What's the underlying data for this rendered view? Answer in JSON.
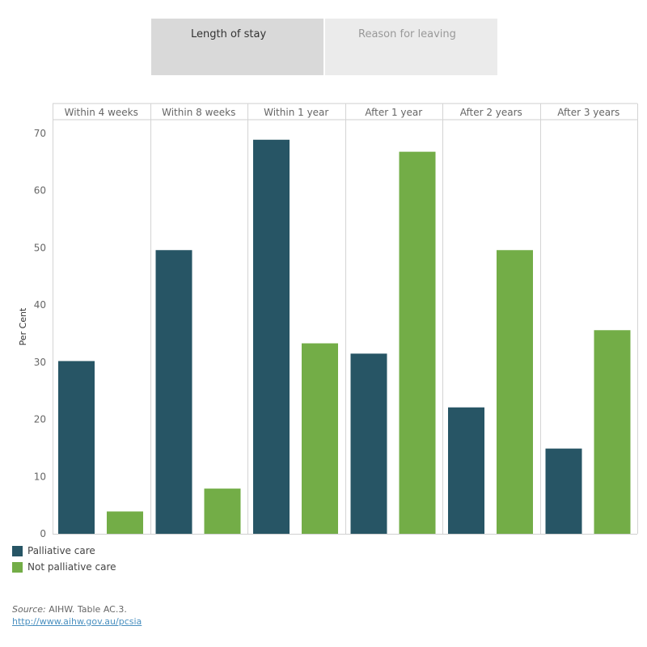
{
  "tabs": {
    "active": "Length of stay",
    "inactive": "Reason for leaving"
  },
  "colors": {
    "palliative": "#275565",
    "not_palliative": "#73ad47"
  },
  "chart_data": {
    "type": "bar",
    "categories": [
      "Within 4 weeks",
      "Within 8 weeks",
      "Within 1 year",
      "After 1 year",
      "After 2 years",
      "After 3 years"
    ],
    "series": [
      {
        "name": "Palliative care",
        "values": [
          30.2,
          49.6,
          68.9,
          31.5,
          22.1,
          14.9
        ]
      },
      {
        "name": "Not palliative care",
        "values": [
          3.9,
          7.9,
          33.3,
          66.8,
          49.6,
          35.6
        ]
      }
    ],
    "ylabel": "Per Cent",
    "xlabel": "",
    "ylim": [
      0,
      70
    ],
    "yticks": [
      0,
      10,
      20,
      30,
      40,
      50,
      60,
      70
    ],
    "grid": false,
    "legend_position": "bottom-left"
  },
  "source": {
    "label": "Source:",
    "text": " AIHW. Table AC.3.",
    "link": "http://www.aihw.gov.au/pcsia"
  }
}
